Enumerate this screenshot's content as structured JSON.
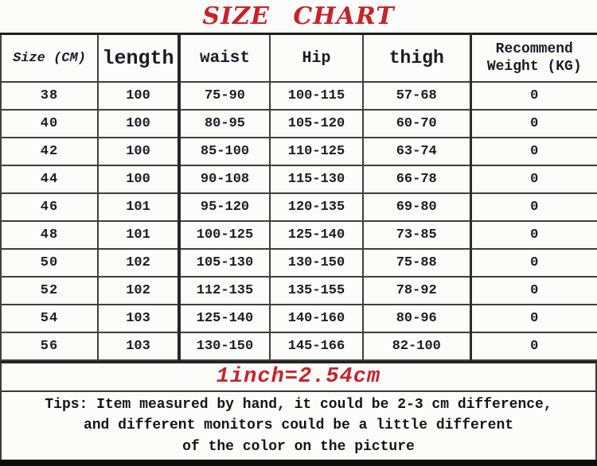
{
  "title": "SIZE CHART",
  "table": {
    "columns": [
      "Size (CM)",
      "length",
      "waist",
      "Hip",
      "thigh",
      "Recommend Weight (KG)"
    ],
    "rows": [
      [
        "38",
        "100",
        "75-90",
        "100-115",
        "57-68",
        "0"
      ],
      [
        "40",
        "100",
        "80-95",
        "105-120",
        "60-70",
        "0"
      ],
      [
        "42",
        "100",
        "85-100",
        "110-125",
        "63-74",
        "0"
      ],
      [
        "44",
        "100",
        "90-108",
        "115-130",
        "66-78",
        "0"
      ],
      [
        "46",
        "101",
        "95-120",
        "120-135",
        "69-80",
        "0"
      ],
      [
        "48",
        "101",
        "100-125",
        "125-140",
        "73-85",
        "0"
      ],
      [
        "50",
        "102",
        "105-130",
        "130-150",
        "75-88",
        "0"
      ],
      [
        "52",
        "102",
        "112-135",
        "135-155",
        "78-92",
        "0"
      ],
      [
        "54",
        "103",
        "125-140",
        "140-160",
        "80-96",
        "0"
      ],
      [
        "56",
        "103",
        "130-150",
        "145-166",
        "82-100",
        "0"
      ]
    ]
  },
  "conversion_note": "1inch=2.54cm",
  "tips": {
    "line1": "Tips: Item measured by hand, it could be 2-3 cm difference,",
    "line2": "and different monitors could be a little different",
    "line3": "of the color on the picture"
  },
  "colors": {
    "title_red": "#c8232b",
    "text_dark": "#1b1b26",
    "border_dark": "#3a3a3a",
    "bottom_bar_black": "#0d0d0d"
  }
}
